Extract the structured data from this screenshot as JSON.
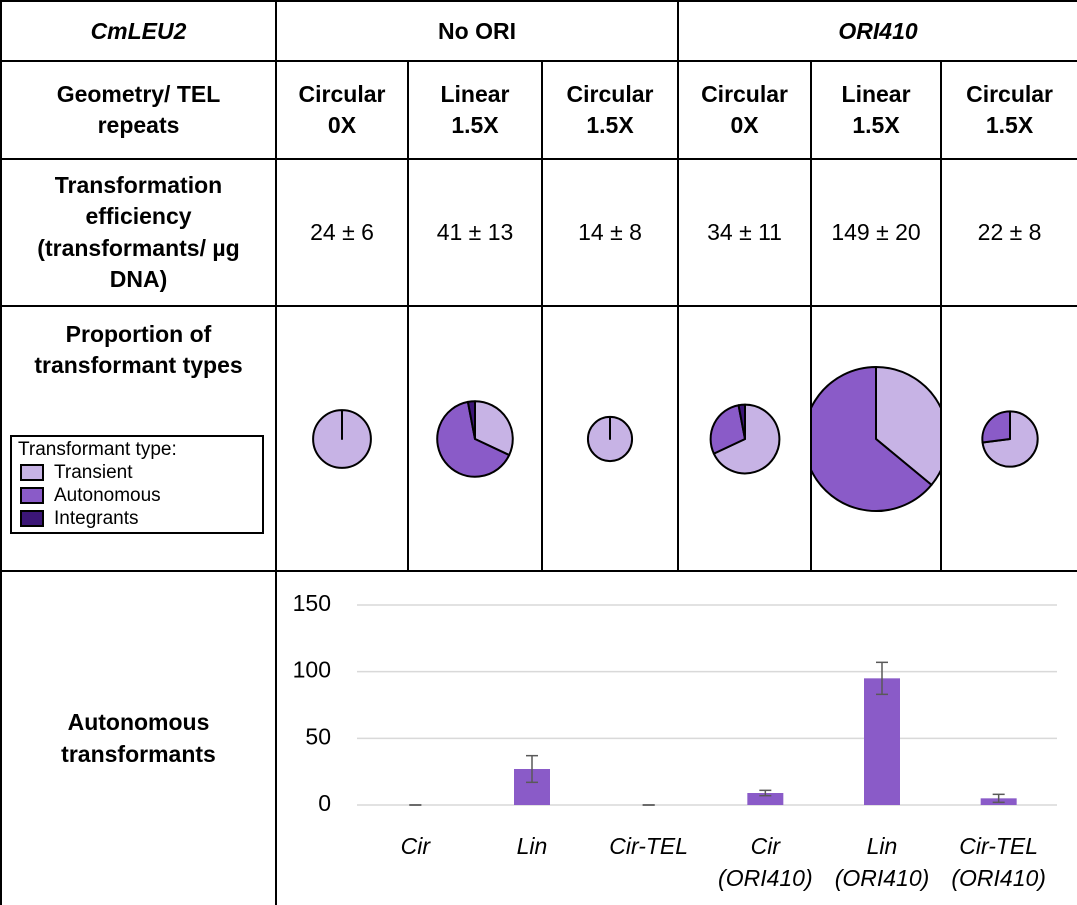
{
  "table": {
    "header": [
      "CmLEU2",
      "No ORI",
      "ORI410"
    ],
    "geometry": {
      "label": "Geometry/ TEL repeats",
      "columns": [
        "Circular 0X",
        "Linear 1.5X",
        "Circular 1.5X",
        "Circular 0X",
        "Linear 1.5X",
        "Circular 1.5X"
      ]
    },
    "efficiency": {
      "label": "Transformation efficiency (transformants/ µg DNA)",
      "values": [
        24,
        41,
        14,
        34,
        149,
        22
      ],
      "value_labels": [
        "24 ± 6",
        "41 ± 13",
        "14 ± 8",
        "34 ± 11",
        "149 ± 20",
        "22 ± 8"
      ]
    },
    "proportions": {
      "label": "Proportion of transformant types",
      "legend_title": "Transformant type:",
      "series": [
        {
          "name": "Transient",
          "color": "#c7b3e5",
          "values": [
            100,
            32,
            100,
            68,
            36,
            73
          ]
        },
        {
          "name": "Autonomous",
          "color": "#8a5bc8",
          "values": [
            0,
            65,
            0,
            29,
            64,
            27
          ]
        },
        {
          "name": "Integrants",
          "color": "#3c1677",
          "values": [
            0,
            3,
            0,
            3,
            0,
            0
          ]
        }
      ]
    },
    "autonomous_label": "Autonomous transformants"
  },
  "chart_data": {
    "type": "bar",
    "categories": [
      "Cir",
      "Lin",
      "Cir-TEL",
      "Cir (ORI410)",
      "Lin (ORI410)",
      "Cir-TEL (ORI410)"
    ],
    "values": [
      0,
      27,
      0,
      9,
      95,
      5
    ],
    "errors": [
      0,
      10,
      0,
      2,
      12,
      3
    ],
    "color": "#8a5bc8",
    "ylim": [
      0,
      150
    ],
    "yticks": [
      0,
      50,
      100,
      150
    ],
    "grid": true
  }
}
